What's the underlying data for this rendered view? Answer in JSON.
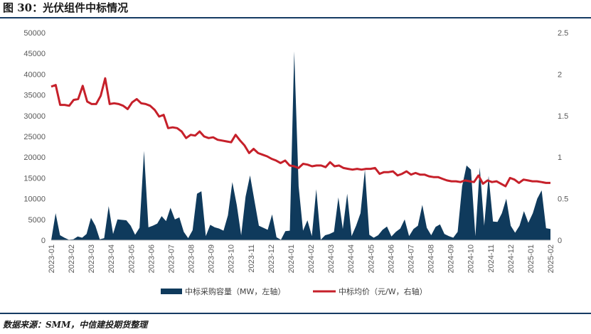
{
  "header": {
    "title": "图 30：光伏组件中标情况"
  },
  "footer": {
    "source": "数据来源：SMM，中信建投期货整理"
  },
  "colors": {
    "bar": "#0f3a5c",
    "line": "#c6202a",
    "rule": "#163b63"
  },
  "chart_data": {
    "type": "bar+line",
    "x_labels": [
      "2023-01",
      "2023-02",
      "2023-03",
      "2023-04",
      "2023-05",
      "2023-06",
      "2023-07",
      "2023-08",
      "2023-09",
      "2023-10",
      "2023-11",
      "2023-12",
      "2024-01",
      "2024-02",
      "2024-03",
      "2024-04",
      "2024-05",
      "2024-06",
      "2024-07",
      "2024-08",
      "2024-09",
      "2024-10",
      "2024-11",
      "2024-12",
      "2025-01",
      "2025-02"
    ],
    "y_left": {
      "ticks": [
        0,
        5000,
        10000,
        15000,
        20000,
        25000,
        30000,
        35000,
        40000,
        45000,
        50000
      ],
      "range": [
        0,
        50000
      ]
    },
    "y_right": {
      "ticks": [
        "0",
        "0.5",
        "1",
        "1.5",
        "2",
        "2.5"
      ],
      "range": [
        0,
        2.5
      ]
    },
    "series": [
      {
        "name": "中标采购容量（MW，左轴）",
        "type": "area",
        "axis": "left",
        "values": [
          0,
          6500,
          1200,
          600,
          100,
          200,
          900,
          600,
          1500,
          5400,
          3500,
          200,
          500,
          8200,
          1500,
          5000,
          4900,
          4800,
          3500,
          1300,
          3000,
          21500,
          3100,
          3500,
          4000,
          5800,
          4600,
          7800,
          5000,
          5500,
          2000,
          500,
          2400,
          11200,
          11800,
          1000,
          3700,
          3100,
          2800,
          2300,
          6000,
          14000,
          8500,
          1200,
          10500,
          15600,
          9500,
          3500,
          3000,
          2500,
          6200,
          700,
          100,
          2200,
          2300,
          45500,
          13000,
          2300,
          4800,
          1000,
          12300,
          100,
          1200,
          1500,
          2000,
          10300,
          2700,
          11200,
          1000,
          3500,
          6500,
          17000,
          1300,
          600,
          1200,
          2500,
          3300,
          900,
          2000,
          2800,
          5000,
          1000,
          2700,
          3500,
          8500,
          3000,
          1200,
          3200,
          3800,
          1500,
          1000,
          600,
          2000,
          13000,
          18000,
          17000,
          1000,
          17500,
          3500,
          15500,
          4500,
          4400,
          6500,
          10000,
          3500,
          1800,
          3500,
          7000,
          4200,
          6500,
          10000,
          12000,
          2900,
          2700
        ]
      },
      {
        "name": "中标均价（元/W，右轴）",
        "type": "line",
        "axis": "right",
        "values": [
          1.85,
          1.87,
          1.63,
          1.63,
          1.62,
          1.69,
          1.7,
          1.86,
          1.67,
          1.64,
          1.64,
          1.74,
          1.95,
          1.64,
          1.65,
          1.64,
          1.62,
          1.58,
          1.66,
          1.7,
          1.65,
          1.64,
          1.62,
          1.57,
          1.49,
          1.51,
          1.35,
          1.36,
          1.35,
          1.31,
          1.23,
          1.27,
          1.26,
          1.31,
          1.25,
          1.23,
          1.24,
          1.21,
          1.2,
          1.19,
          1.18,
          1.27,
          1.2,
          1.14,
          1.05,
          1.1,
          1.05,
          1.03,
          1.01,
          0.98,
          0.96,
          0.93,
          0.96,
          0.9,
          0.89,
          0.87,
          0.92,
          0.91,
          0.89,
          0.9,
          0.9,
          0.88,
          0.94,
          0.89,
          0.9,
          0.87,
          0.86,
          0.85,
          0.86,
          0.85,
          0.86,
          0.86,
          0.87,
          0.8,
          0.82,
          0.82,
          0.83,
          0.78,
          0.8,
          0.83,
          0.79,
          0.81,
          0.79,
          0.79,
          0.77,
          0.76,
          0.76,
          0.74,
          0.72,
          0.71,
          0.71,
          0.7,
          0.72,
          0.71,
          0.7,
          0.78,
          0.68,
          0.72,
          0.7,
          0.71,
          0.68,
          0.65,
          0.75,
          0.73,
          0.69,
          0.73,
          0.72,
          0.71,
          0.71,
          0.7,
          0.69,
          0.69
        ]
      }
    ],
    "legend": [
      {
        "label": "中标采购容量（MW，左轴）",
        "kind": "bar"
      },
      {
        "label": "中标均价（元/W，右轴）",
        "kind": "line"
      }
    ],
    "legend_position": "bottom",
    "grid": false
  }
}
